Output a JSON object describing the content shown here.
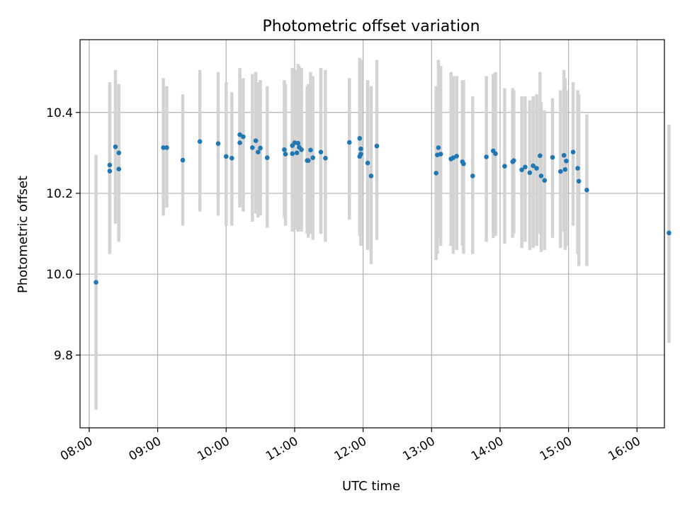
{
  "chart_data": {
    "type": "scatter",
    "title": "Photometric offset variation",
    "xlabel": "UTC time",
    "ylabel": "Photometric offset",
    "grid": true,
    "xlim": [
      472,
      984
    ],
    "ylim": [
      9.62,
      10.58
    ],
    "x_unit": "minutes since 00:00 UTC",
    "x_ticks": [
      {
        "value": 480,
        "label": "08:00"
      },
      {
        "value": 540,
        "label": "09:00"
      },
      {
        "value": 600,
        "label": "10:00"
      },
      {
        "value": 660,
        "label": "11:00"
      },
      {
        "value": 720,
        "label": "12:00"
      },
      {
        "value": 780,
        "label": "13:00"
      },
      {
        "value": 840,
        "label": "14:00"
      },
      {
        "value": 900,
        "label": "15:00"
      },
      {
        "value": 960,
        "label": "16:00"
      }
    ],
    "y_ticks": [
      {
        "value": 9.8,
        "label": "9.8"
      },
      {
        "value": 10.0,
        "label": "10.0"
      },
      {
        "value": 10.2,
        "label": "10.2"
      },
      {
        "value": 10.4,
        "label": "10.4"
      }
    ],
    "series": [
      {
        "name": "Photometric offset",
        "point_color": "#1f77b4",
        "error_color": "#d3d3d3",
        "x": [
          486,
          498,
          498,
          503,
          506,
          506,
          545,
          548,
          562,
          577,
          593,
          600,
          605,
          612,
          612,
          615,
          623,
          626,
          628,
          630,
          636,
          651,
          652,
          658,
          658,
          660,
          662,
          663,
          664,
          666,
          671,
          672,
          674,
          676,
          683,
          687,
          708,
          717,
          717,
          718,
          718,
          724,
          727,
          732,
          784,
          785,
          786,
          788,
          797,
          799,
          802,
          807,
          808,
          816,
          828,
          834,
          836,
          844,
          851,
          852,
          859,
          862,
          866,
          869,
          872,
          875,
          876,
          879,
          886,
          893,
          896,
          897,
          898,
          904,
          908,
          909,
          916
        ],
        "y": [
          9.98,
          10.255,
          10.27,
          10.315,
          10.26,
          10.3,
          10.313,
          10.313,
          10.282,
          10.328,
          10.323,
          10.291,
          10.287,
          10.345,
          10.325,
          10.34,
          10.313,
          10.33,
          10.302,
          10.312,
          10.288,
          10.308,
          10.297,
          10.298,
          10.318,
          10.325,
          10.3,
          10.324,
          10.314,
          10.308,
          10.281,
          10.281,
          10.307,
          10.288,
          10.302,
          10.287,
          10.326,
          10.336,
          10.291,
          10.297,
          10.31,
          10.275,
          10.243,
          10.317,
          10.25,
          10.295,
          10.313,
          10.297,
          10.285,
          10.288,
          10.292,
          10.278,
          10.273,
          10.243,
          10.29,
          10.305,
          10.298,
          10.267,
          10.278,
          10.281,
          10.258,
          10.265,
          10.251,
          10.268,
          10.262,
          10.293,
          10.243,
          10.232,
          10.289,
          10.254,
          10.294,
          10.259,
          10.28,
          10.302,
          10.262,
          10.23,
          10.208
        ],
        "y_low": [
          9.665,
          10.05,
          10.05,
          10.125,
          10.08,
          10.09,
          10.145,
          10.165,
          10.12,
          10.155,
          10.145,
          10.12,
          10.12,
          10.175,
          10.165,
          10.155,
          10.13,
          10.15,
          10.14,
          10.145,
          10.115,
          10.14,
          10.12,
          10.105,
          10.13,
          10.11,
          10.11,
          10.105,
          10.11,
          10.105,
          10.1,
          10.09,
          10.1,
          10.085,
          10.1,
          10.08,
          10.135,
          10.145,
          10.095,
          10.075,
          10.07,
          10.06,
          10.025,
          10.085,
          10.035,
          10.05,
          10.09,
          10.07,
          10.07,
          10.05,
          10.06,
          10.07,
          10.05,
          10.05,
          10.08,
          10.09,
          10.095,
          10.075,
          10.09,
          10.1,
          10.065,
          10.08,
          10.06,
          10.065,
          10.07,
          10.1,
          10.055,
          10.06,
          10.09,
          10.065,
          10.105,
          10.06,
          10.07,
          10.12,
          10.05,
          10.02,
          10.02
        ],
        "y_high": [
          10.295,
          10.475,
          10.47,
          10.505,
          10.465,
          10.47,
          10.485,
          10.465,
          10.445,
          10.505,
          10.5,
          10.475,
          10.45,
          10.51,
          10.495,
          10.485,
          10.495,
          10.5,
          10.475,
          10.48,
          10.465,
          10.48,
          10.47,
          10.5,
          10.51,
          10.495,
          10.505,
          10.52,
          10.515,
          10.51,
          10.465,
          10.47,
          10.5,
          10.49,
          10.51,
          10.505,
          10.485,
          10.535,
          10.51,
          10.52,
          10.53,
          10.48,
          10.465,
          10.53,
          10.465,
          10.465,
          10.53,
          10.515,
          10.5,
          10.49,
          10.49,
          10.48,
          10.48,
          10.44,
          10.49,
          10.495,
          10.5,
          10.46,
          10.46,
          10.455,
          10.44,
          10.44,
          10.43,
          10.44,
          10.445,
          10.5,
          10.425,
          10.405,
          10.435,
          10.455,
          10.505,
          10.485,
          10.455,
          10.475,
          10.455,
          10.445,
          10.395
        ]
      }
    ],
    "extra_points": [
      {
        "x": 988,
        "y": 10.102,
        "y_low": 9.83,
        "y_high": 10.37
      }
    ]
  }
}
